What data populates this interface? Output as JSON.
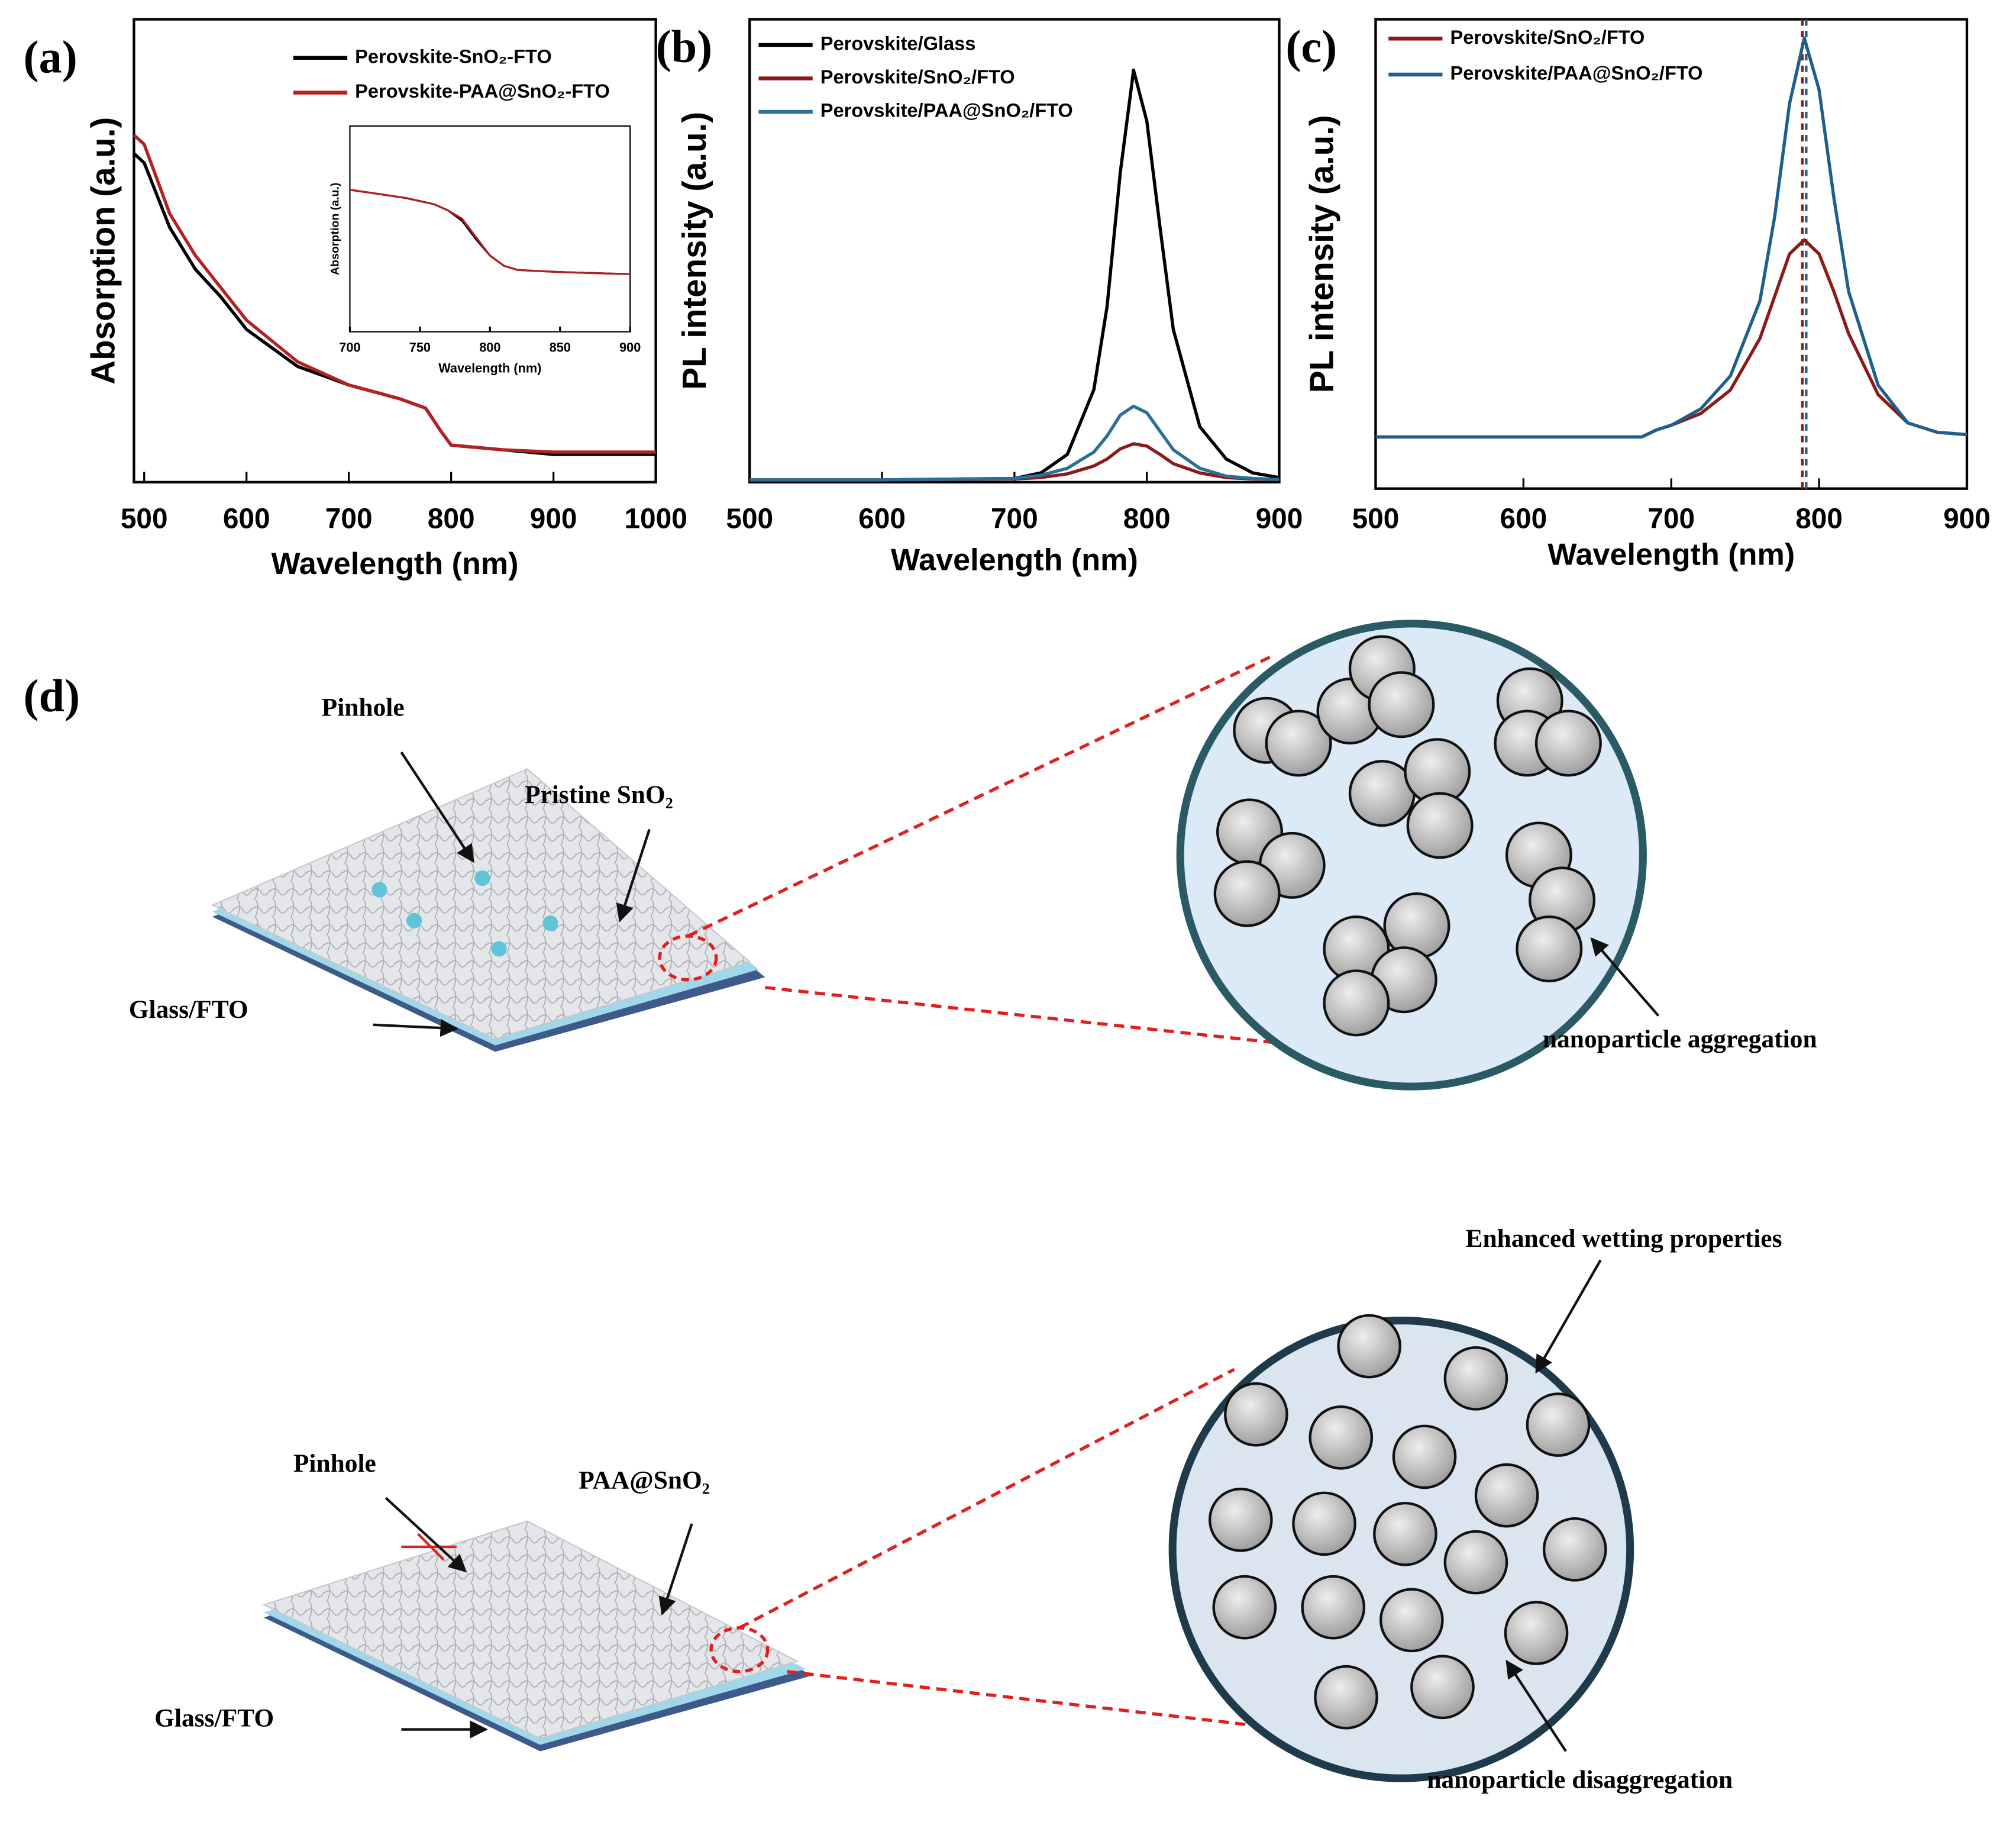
{
  "chart_data": [
    {
      "type": "line",
      "label": "(a)",
      "x_label": "Wavelength (nm)",
      "y_label": "Absorption (a.u.)",
      "x": [
        490,
        500,
        525,
        550,
        575,
        600,
        650,
        700,
        750,
        775,
        790,
        800,
        850,
        900,
        1000
      ],
      "series": [
        {
          "name": "Perovskite-SnO₂-FTO",
          "color": "#000000",
          "values": [
            0.71,
            0.69,
            0.55,
            0.46,
            0.4,
            0.33,
            0.25,
            0.21,
            0.18,
            0.16,
            0.11,
            0.08,
            0.07,
            0.06,
            0.06
          ]
        },
        {
          "name": "Perovskite-PAA@SnO₂-FTO",
          "color": "#b22222",
          "values": [
            0.75,
            0.73,
            0.58,
            0.49,
            0.42,
            0.35,
            0.26,
            0.21,
            0.18,
            0.16,
            0.11,
            0.08,
            0.07,
            0.065,
            0.065
          ]
        }
      ],
      "xlim": [
        490,
        1000
      ],
      "xticks": [
        500,
        600,
        700,
        800,
        900,
        1000
      ],
      "ylim": [
        0,
        1
      ]
    },
    {
      "type": "line",
      "x_label": "Wavelength (nm)",
      "y_label": "Absorption (a.u.)",
      "x": [
        700,
        720,
        740,
        760,
        770,
        780,
        790,
        800,
        810,
        820,
        850,
        900
      ],
      "series": [
        {
          "color": "#000000",
          "values": [
            0.69,
            0.67,
            0.65,
            0.62,
            0.59,
            0.54,
            0.45,
            0.37,
            0.32,
            0.3,
            0.29,
            0.28
          ]
        },
        {
          "color": "#b22222",
          "values": [
            0.69,
            0.67,
            0.65,
            0.62,
            0.59,
            0.55,
            0.46,
            0.37,
            0.32,
            0.3,
            0.29,
            0.28
          ]
        }
      ],
      "xlim": [
        700,
        900
      ],
      "xticks": [
        700,
        750,
        800,
        850,
        900
      ],
      "ylim": [
        0,
        1
      ]
    },
    {
      "type": "line",
      "label": "(b)",
      "x_label": "Wavelength (nm)",
      "y_label": "PL intensity (a.u.)",
      "x": [
        500,
        600,
        700,
        720,
        740,
        760,
        770,
        780,
        790,
        800,
        810,
        820,
        840,
        860,
        880,
        900
      ],
      "series": [
        {
          "name": "Perovskite/Glass",
          "color": "#000000",
          "values": [
            0.005,
            0.005,
            0.008,
            0.02,
            0.06,
            0.2,
            0.38,
            0.67,
            0.89,
            0.78,
            0.55,
            0.33,
            0.12,
            0.05,
            0.02,
            0.01
          ]
        },
        {
          "name": "Perovskite/SnO₂/FTO",
          "color": "#8b1a1a",
          "values": [
            0.005,
            0.005,
            0.007,
            0.01,
            0.018,
            0.035,
            0.05,
            0.072,
            0.083,
            0.078,
            0.06,
            0.04,
            0.02,
            0.01,
            0.007,
            0.006
          ]
        },
        {
          "name": "Perovskite/PAA@SnO₂/FTO",
          "color": "#2a6f97",
          "values": [
            0.005,
            0.005,
            0.008,
            0.015,
            0.03,
            0.065,
            0.1,
            0.145,
            0.164,
            0.15,
            0.11,
            0.07,
            0.03,
            0.013,
            0.008,
            0.006
          ]
        }
      ],
      "xlim": [
        500,
        900
      ],
      "xticks": [
        500,
        600,
        700,
        800,
        900
      ],
      "ylim": [
        0,
        1
      ]
    },
    {
      "type": "line",
      "label": "(c)",
      "x_label": "Wavelength (nm)",
      "y_label": "PL intensity (a.u.)",
      "x": [
        500,
        600,
        680,
        690,
        700,
        720,
        740,
        760,
        770,
        780,
        790,
        800,
        810,
        820,
        840,
        860,
        880,
        900
      ],
      "series": [
        {
          "name": "Perovskite/SnO₂/FTO",
          "color": "#8b1a1a",
          "values": [
            0.11,
            0.11,
            0.11,
            0.125,
            0.135,
            0.16,
            0.21,
            0.32,
            0.41,
            0.5,
            0.53,
            0.5,
            0.42,
            0.33,
            0.2,
            0.14,
            0.12,
            0.115
          ]
        },
        {
          "name": "Perovskite/PAA@SnO₂/FTO",
          "color": "#1f5f8b",
          "values": [
            0.11,
            0.11,
            0.11,
            0.125,
            0.135,
            0.17,
            0.24,
            0.4,
            0.58,
            0.82,
            0.96,
            0.85,
            0.62,
            0.42,
            0.22,
            0.14,
            0.12,
            0.115
          ]
        }
      ],
      "vline_x": 790,
      "xlim": [
        500,
        900
      ],
      "xticks": [
        500,
        600,
        700,
        800,
        900
      ],
      "ylim": [
        0,
        1
      ]
    }
  ],
  "diagram": {
    "label": "(d)",
    "top": {
      "pinhole": "Pinhole",
      "layer": "Pristine SnO₂",
      "substrate": "Glass/FTO",
      "caption": "nanoparticle aggregation"
    },
    "bottom": {
      "pinhole": "Pinhole",
      "layer": "PAA@SnO₂",
      "substrate": "Glass/FTO",
      "note": "Enhanced wetting properties",
      "caption": "nanoparticle disaggregation"
    }
  }
}
